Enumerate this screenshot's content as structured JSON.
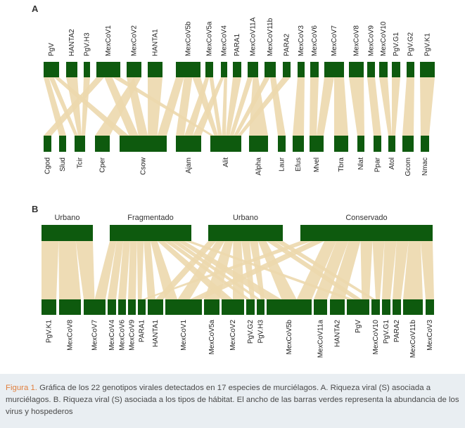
{
  "colors": {
    "bar": "#0e5a0e",
    "link": "#ecd8ad",
    "caption_band": "#e9eef2",
    "caption_label": "#e07f3e"
  },
  "chart_data": [
    {
      "panel": "A",
      "type": "bipartite",
      "top_nodes": [
        "PgV",
        "HANTA2",
        "PgV.H3",
        "MexCoV1",
        "MexCoV2",
        "HANTA1",
        "MexCoV5b",
        "MexCoV5a",
        "MexCoV4",
        "PARA1",
        "MexCoV11A",
        "MexCoV11b",
        "PARA2",
        "MexCoV3",
        "MexCoV6",
        "MexCoV7",
        "MexCoV8",
        "MexCoV9",
        "MexCoV10",
        "PgV.G1",
        "PgV.G2",
        "PgV.K1"
      ],
      "bottom_nodes": [
        "Cgod",
        "Slud",
        "Tcir",
        "Cper",
        "Csow",
        "Ajam",
        "Alit",
        "Alpha",
        "Laur",
        "Efus",
        "Mvel",
        "Tbra",
        "Nlat",
        "Ppar",
        "Atol",
        "Gcom",
        "Nmac"
      ]
    },
    {
      "panel": "B",
      "type": "bipartite",
      "top_nodes": [
        "Urbano",
        "Fragmentado",
        "Urbano",
        "Conservado"
      ],
      "bottom_nodes": [
        "PgV.K1",
        "MexCoV8",
        "MexCoV7",
        "MexCoV4",
        "MexCoV6",
        "MexCoV9",
        "PARA1",
        "HANTA1",
        "MexCoV1",
        "MexCoV5a",
        "MexCoV2",
        "PgV.G2",
        "PgV.H3",
        "MexCoV5b",
        "MexCoV11a",
        "HANTA2",
        "PgV",
        "MexCoV10",
        "PgV.G1",
        "PARA2",
        "MexCoV11b",
        "MexCoV3"
      ]
    }
  ],
  "caption": {
    "label": "Figura 1.",
    "text": " Gráfica de los 22 genotipos virales detectados en 17 especies de murciélagos.  A. Riqueza viral (S) asociada a murciélagos. B. Riqueza viral (S) asociada a los tipos de hábitat. El ancho de las barras verdes representa la abundancia de los virus y hospederos"
  }
}
